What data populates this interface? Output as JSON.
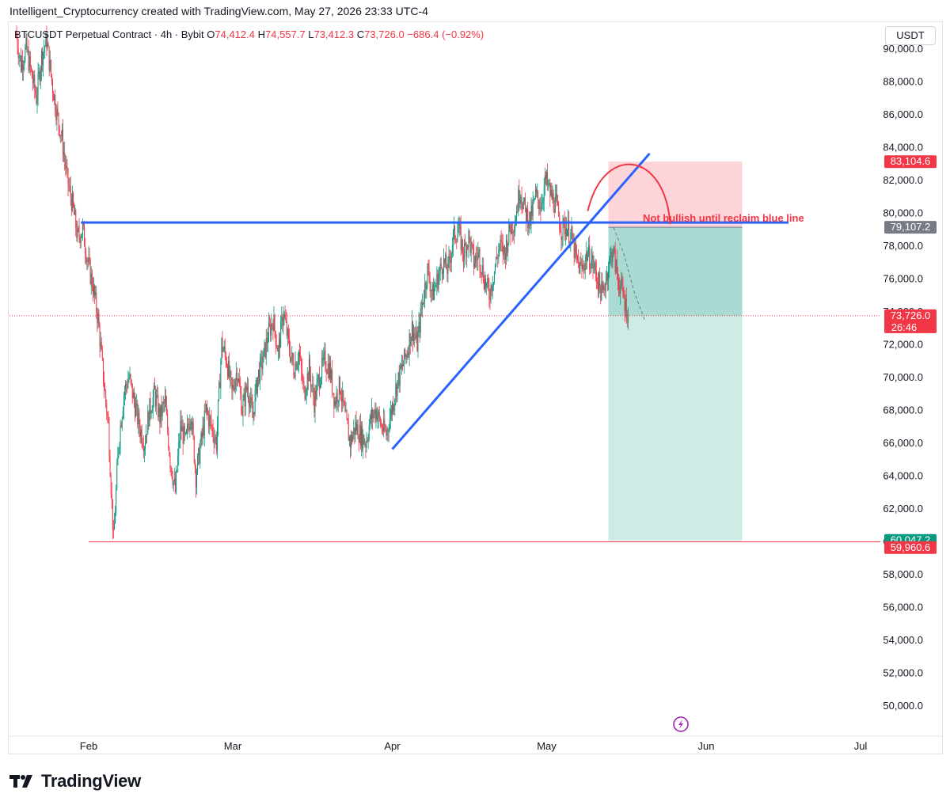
{
  "header": {
    "text": "Intelligent_Cryptocurrency created with TradingView.com, May 27, 2026 23:33 UTC-4"
  },
  "legend": {
    "symbol": "BTCUSDT Perpetual Contract · 4h · Bybit",
    "o_key": "O",
    "o_val": "74,412.4",
    "h_key": "H",
    "h_val": "74,557.7",
    "l_key": "L",
    "l_val": "73,412.3",
    "c_key": "C",
    "c_val": "73,726.0",
    "change": "−686.4 (−0.92%)"
  },
  "currency_button": "USDT",
  "annotation": "Not bullish until reclaim blue line",
  "logo_text": "TradingView",
  "colors": {
    "up": "#089981",
    "down": "#f23645",
    "trendline": "#2962ff",
    "drawing": "#f23645",
    "target_zone": "#089981"
  },
  "price_tags": {
    "stop": "83,104.6",
    "entry": "79,107.2",
    "last": "73,726.0",
    "countdown": "26:46",
    "target": "60,047.2",
    "low_line": "59,960.6"
  },
  "chart_data": {
    "type": "candlestick",
    "symbol": "BTCUSDT",
    "interval": "4h",
    "ylim": [
      49000,
      91500
    ],
    "y_ticks": [
      50000,
      52000,
      54000,
      56000,
      58000,
      60000,
      62000,
      64000,
      66000,
      68000,
      70000,
      72000,
      74000,
      76000,
      78000,
      80000,
      82000,
      84000,
      86000,
      88000,
      90000
    ],
    "y_tick_labels": [
      "50,000.0",
      "52,000.0",
      "54,000.0",
      "56,000.0",
      "58,000.0",
      "60,000.0",
      "62,000.0",
      "64,000.0",
      "66,000.0",
      "68,000.0",
      "70,000.0",
      "72,000.0",
      "74,000.0",
      "76,000.0",
      "78,000.0",
      "80,000.0",
      "82,000.0",
      "84,000.0",
      "86,000.0",
      "88,000.0",
      "90,000.0"
    ],
    "x_ticks": [
      {
        "label": "Feb",
        "day": 0
      },
      {
        "label": "Mar",
        "day": 28
      },
      {
        "label": "Apr",
        "day": 59
      },
      {
        "label": "May",
        "day": 89
      },
      {
        "label": "Jun",
        "day": 120
      },
      {
        "label": "Jul",
        "day": 150
      }
    ],
    "key_path": [
      [
        -14,
        91000
      ],
      [
        -13,
        89000
      ],
      [
        -12,
        90000
      ],
      [
        -11,
        88500
      ],
      [
        -10,
        87000
      ],
      [
        -9,
        89500
      ],
      [
        -8,
        90500
      ],
      [
        -7,
        88000
      ],
      [
        -6,
        86000
      ],
      [
        -5,
        84500
      ],
      [
        -4,
        82000
      ],
      [
        -3,
        80500
      ],
      [
        -2,
        78500
      ],
      [
        -1,
        79000
      ],
      [
        0,
        77000
      ],
      [
        1,
        75500
      ],
      [
        2,
        73500
      ],
      [
        3,
        70000
      ],
      [
        4,
        67000
      ],
      [
        5,
        60000
      ],
      [
        6,
        66000
      ],
      [
        7,
        69000
      ],
      [
        8,
        70000
      ],
      [
        9,
        68500
      ],
      [
        10,
        67000
      ],
      [
        11,
        66000
      ],
      [
        12,
        68000
      ],
      [
        13,
        69000
      ],
      [
        14,
        67500
      ],
      [
        15,
        68500
      ],
      [
        16,
        65000
      ],
      [
        17,
        63000
      ],
      [
        18,
        67000
      ],
      [
        19,
        66000
      ],
      [
        20,
        68000
      ],
      [
        21,
        64000
      ],
      [
        22,
        66000
      ],
      [
        23,
        68000
      ],
      [
        24,
        67000
      ],
      [
        25,
        66000
      ],
      [
        26,
        72000
      ],
      [
        27,
        71000
      ],
      [
        28,
        69000
      ],
      [
        29,
        70500
      ],
      [
        30,
        68000
      ],
      [
        31,
        69500
      ],
      [
        32,
        67500
      ],
      [
        33,
        70000
      ],
      [
        34,
        71000
      ],
      [
        35,
        72500
      ],
      [
        36,
        73500
      ],
      [
        37,
        71500
      ],
      [
        38,
        74000
      ],
      [
        39,
        72000
      ],
      [
        40,
        70500
      ],
      [
        41,
        71500
      ],
      [
        42,
        69000
      ],
      [
        43,
        70500
      ],
      [
        44,
        68500
      ],
      [
        45,
        70000
      ],
      [
        46,
        71000
      ],
      [
        47,
        70500
      ],
      [
        48,
        68500
      ],
      [
        49,
        69500
      ],
      [
        50,
        67500
      ],
      [
        51,
        66000
      ],
      [
        52,
        67000
      ],
      [
        53,
        66500
      ],
      [
        54,
        66000
      ],
      [
        55,
        67500
      ],
      [
        56,
        68000
      ],
      [
        57,
        67000
      ],
      [
        58,
        66500
      ],
      [
        59,
        68000
      ],
      [
        60,
        69500
      ],
      [
        61,
        70500
      ],
      [
        62,
        71500
      ],
      [
        63,
        73000
      ],
      [
        64,
        72000
      ],
      [
        65,
        74500
      ],
      [
        66,
        76500
      ],
      [
        67,
        75000
      ],
      [
        68,
        76000
      ],
      [
        69,
        77000
      ],
      [
        70,
        76500
      ],
      [
        71,
        78500
      ],
      [
        72,
        79000
      ],
      [
        73,
        77500
      ],
      [
        74,
        78500
      ],
      [
        75,
        77000
      ],
      [
        76,
        77500
      ],
      [
        77,
        76000
      ],
      [
        78,
        75000
      ],
      [
        79,
        76500
      ],
      [
        80,
        78000
      ],
      [
        81,
        77500
      ],
      [
        82,
        79000
      ],
      [
        83,
        79500
      ],
      [
        84,
        81500
      ],
      [
        85,
        80000
      ],
      [
        86,
        79500
      ],
      [
        87,
        81000
      ],
      [
        88,
        80500
      ],
      [
        89,
        82000
      ],
      [
        90,
        81000
      ],
      [
        91,
        80500
      ],
      [
        92,
        79000
      ],
      [
        93,
        79200
      ],
      [
        94,
        78500
      ],
      [
        95,
        77000
      ],
      [
        96,
        76500
      ],
      [
        97,
        77500
      ],
      [
        98,
        77000
      ],
      [
        99,
        76000
      ],
      [
        100,
        75000
      ],
      [
        101,
        76500
      ],
      [
        102,
        77800
      ],
      [
        103,
        76000
      ],
      [
        104,
        75000
      ],
      [
        105,
        73700
      ]
    ],
    "horizontal_lines": [
      {
        "name": "blue-line",
        "value": 79400
      },
      {
        "name": "low-line",
        "value": 59960.6
      },
      {
        "name": "last-price-line",
        "value": 73726.0
      }
    ],
    "trendline": {
      "from": {
        "day": 59,
        "value": 65600
      },
      "to": {
        "day": 109,
        "value": 83600
      }
    },
    "arc": {
      "from": {
        "day": 97,
        "value": 80100
      },
      "top": {
        "day": 103,
        "value": 83000
      },
      "to": {
        "day": 113,
        "value": 79300
      }
    },
    "position_tool": {
      "start_day": 101,
      "end_day": 127,
      "stop": 83104.6,
      "entry": 79107.2,
      "target": 60047.2,
      "current": 73726.0
    },
    "dashed_path": [
      [
        102,
        79107.2
      ],
      [
        104,
        77500
      ],
      [
        106,
        75200
      ],
      [
        108,
        73500
      ]
    ]
  }
}
